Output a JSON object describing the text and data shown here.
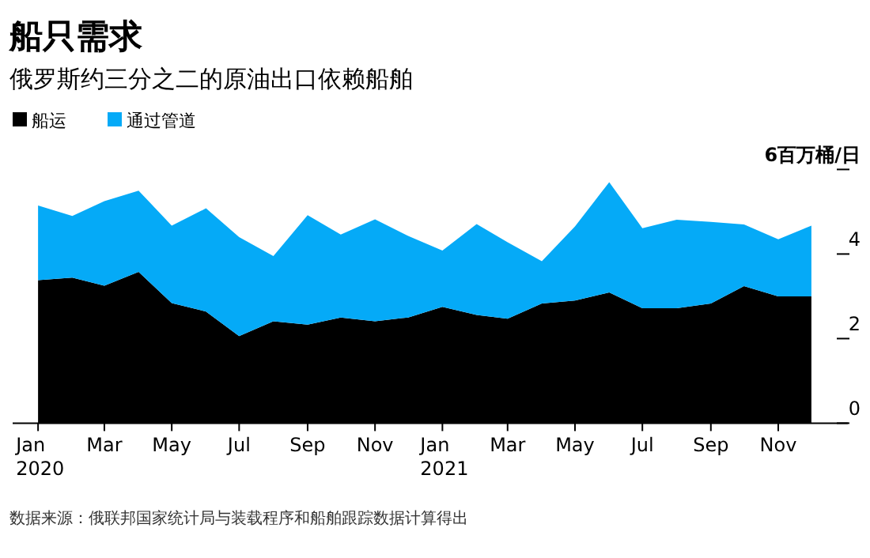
{
  "chart_data": {
    "type": "area",
    "stacked": true,
    "title": "船只需求",
    "subtitle": "俄罗斯约三分之二的原油出口依赖船舶",
    "x": [
      "2020-01",
      "2020-02",
      "2020-03",
      "2020-04",
      "2020-05",
      "2020-06",
      "2020-07",
      "2020-08",
      "2020-09",
      "2020-10",
      "2020-11",
      "2020-12",
      "2021-01",
      "2021-02",
      "2021-03",
      "2021-04",
      "2021-05",
      "2021-06",
      "2021-07",
      "2021-08",
      "2021-09",
      "2021-10",
      "2021-11",
      "2021-12"
    ],
    "series": [
      {
        "name": "船运",
        "color": "#000000",
        "values": [
          3.38,
          3.44,
          3.25,
          3.58,
          2.84,
          2.64,
          2.06,
          2.41,
          2.33,
          2.5,
          2.41,
          2.5,
          2.75,
          2.56,
          2.47,
          2.83,
          2.9,
          3.09,
          2.72,
          2.72,
          2.83,
          3.24,
          3.0,
          3.0
        ]
      },
      {
        "name": "通过管道",
        "color": "#05aaf7",
        "values": [
          1.77,
          1.46,
          2.0,
          1.92,
          1.83,
          2.44,
          2.34,
          1.54,
          2.59,
          1.96,
          2.41,
          1.93,
          1.33,
          2.15,
          1.81,
          1.0,
          1.75,
          2.61,
          1.89,
          2.09,
          1.93,
          1.46,
          1.35,
          1.67
        ]
      }
    ],
    "xlim": [
      "2019-12-09",
      "2022-01-03"
    ],
    "xticks": [
      {
        "value": "2020-01",
        "label": "Jan 2020"
      },
      {
        "value": "2020-03",
        "label": "Mar"
      },
      {
        "value": "2020-05",
        "label": "May"
      },
      {
        "value": "2020-07",
        "label": "Jul"
      },
      {
        "value": "2020-09",
        "label": "Sep"
      },
      {
        "value": "2020-11",
        "label": "Nov"
      },
      {
        "value": "2021-01",
        "label": "Jan 2021"
      },
      {
        "value": "2021-03",
        "label": "Mar"
      },
      {
        "value": "2021-05",
        "label": "May"
      },
      {
        "value": "2021-07",
        "label": "Jul"
      },
      {
        "value": "2021-09",
        "label": "Sep"
      },
      {
        "value": "2021-11",
        "label": "Nov"
      }
    ],
    "ylim": [
      0,
      6
    ],
    "yticks": [
      0,
      2,
      4,
      {
        "value": 6,
        "label": "6百万桶/日"
      }
    ],
    "grid": false,
    "legend": "top left",
    "annotations": [
      "数据来源：俄联邦国家统计局与装载程序和船舶跟踪数据计算得出"
    ]
  }
}
